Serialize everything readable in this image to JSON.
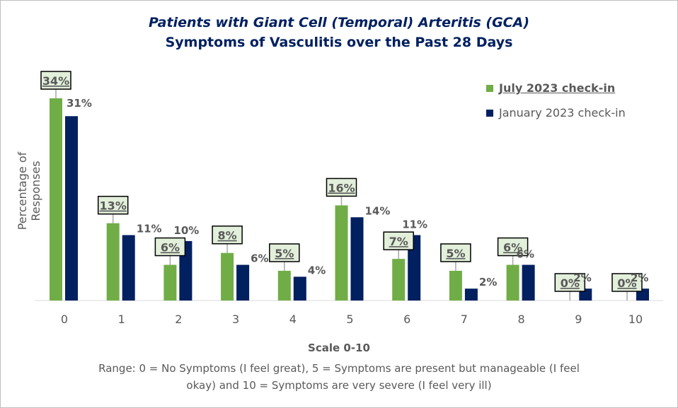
{
  "chart_data": {
    "type": "bar",
    "title": "Patients with Giant Cell (Temporal) Arteritis (GCA)",
    "subtitle": "Symptoms of Vasculitis over the Past 28 Days",
    "xlabel": "Scale 0-10",
    "ylabel": "Percentage of Responses",
    "note": "Range: 0 = No Symptoms (I feel great), 5 = Symptoms are present but manageable (I feel okay) and 10 = Symptoms are very severe (I feel very ill)",
    "categories": [
      "0",
      "1",
      "2",
      "3",
      "4",
      "5",
      "6",
      "7",
      "8",
      "9",
      "10"
    ],
    "series": [
      {
        "name": "July 2023 check-in",
        "color": "#70ad47",
        "values": [
          34,
          13,
          6,
          8,
          5,
          16,
          7,
          5,
          6,
          0,
          0
        ],
        "labels": [
          "34%",
          "13%",
          "6%",
          "8%",
          "5%",
          "16%",
          "7%",
          "5%",
          "6%",
          "0%",
          "0%"
        ]
      },
      {
        "name": "January 2023 check-in",
        "color": "#002060",
        "values": [
          31,
          11,
          10,
          6,
          4,
          14,
          11,
          2,
          6,
          2,
          2
        ],
        "labels": [
          "31%",
          "11%",
          "10%",
          "6%",
          "4%",
          "14%",
          "11%",
          "2%",
          "6%",
          "2%",
          "2%"
        ]
      }
    ],
    "ylim": [
      0,
      34
    ],
    "grid": false,
    "legend": "top-right"
  }
}
